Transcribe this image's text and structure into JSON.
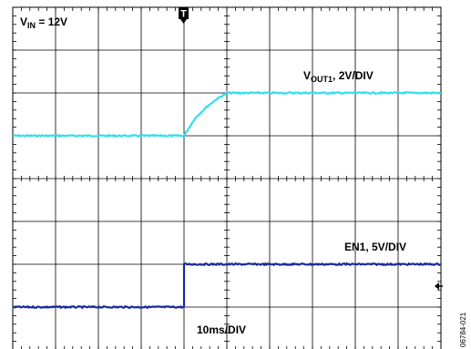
{
  "chart_data": {
    "type": "line",
    "title": "",
    "grid": true,
    "divisions": {
      "x": 10,
      "y": 8
    },
    "time_per_div_ms": 10,
    "trigger_position_div": 4,
    "annotations": {
      "vin": {
        "prefix": "V",
        "sub": "IN",
        "suffix": " = 12V"
      },
      "trigger_marker": "T",
      "timebase": "10ms/DIV",
      "figure_id": "06784-021"
    },
    "colors": {
      "vout1": "#33e0e8",
      "en1": "#1a2a9a",
      "grid": "#000000"
    },
    "series": [
      {
        "name": "VOUT1, 2V/DIV",
        "label": {
          "prefix": "V",
          "sub": "OUT1",
          "suffix": ", 2V/DIV"
        },
        "color": "#33e0e8",
        "x_div": [
          0,
          4.0,
          4.25,
          4.5,
          4.75,
          5.0,
          10
        ],
        "y_div_from_top": [
          3.0,
          3.0,
          2.6,
          2.35,
          2.15,
          2.0,
          2.0
        ]
      },
      {
        "name": "EN1, 5V/DIV",
        "label": {
          "prefix": "EN1, 5V/DIV",
          "sub": "",
          "suffix": ""
        },
        "color": "#1a2a9a",
        "x_div": [
          0,
          4.0,
          4.0,
          10
        ],
        "y_div_from_top": [
          7.0,
          7.0,
          6.0,
          6.0
        ]
      }
    ]
  }
}
